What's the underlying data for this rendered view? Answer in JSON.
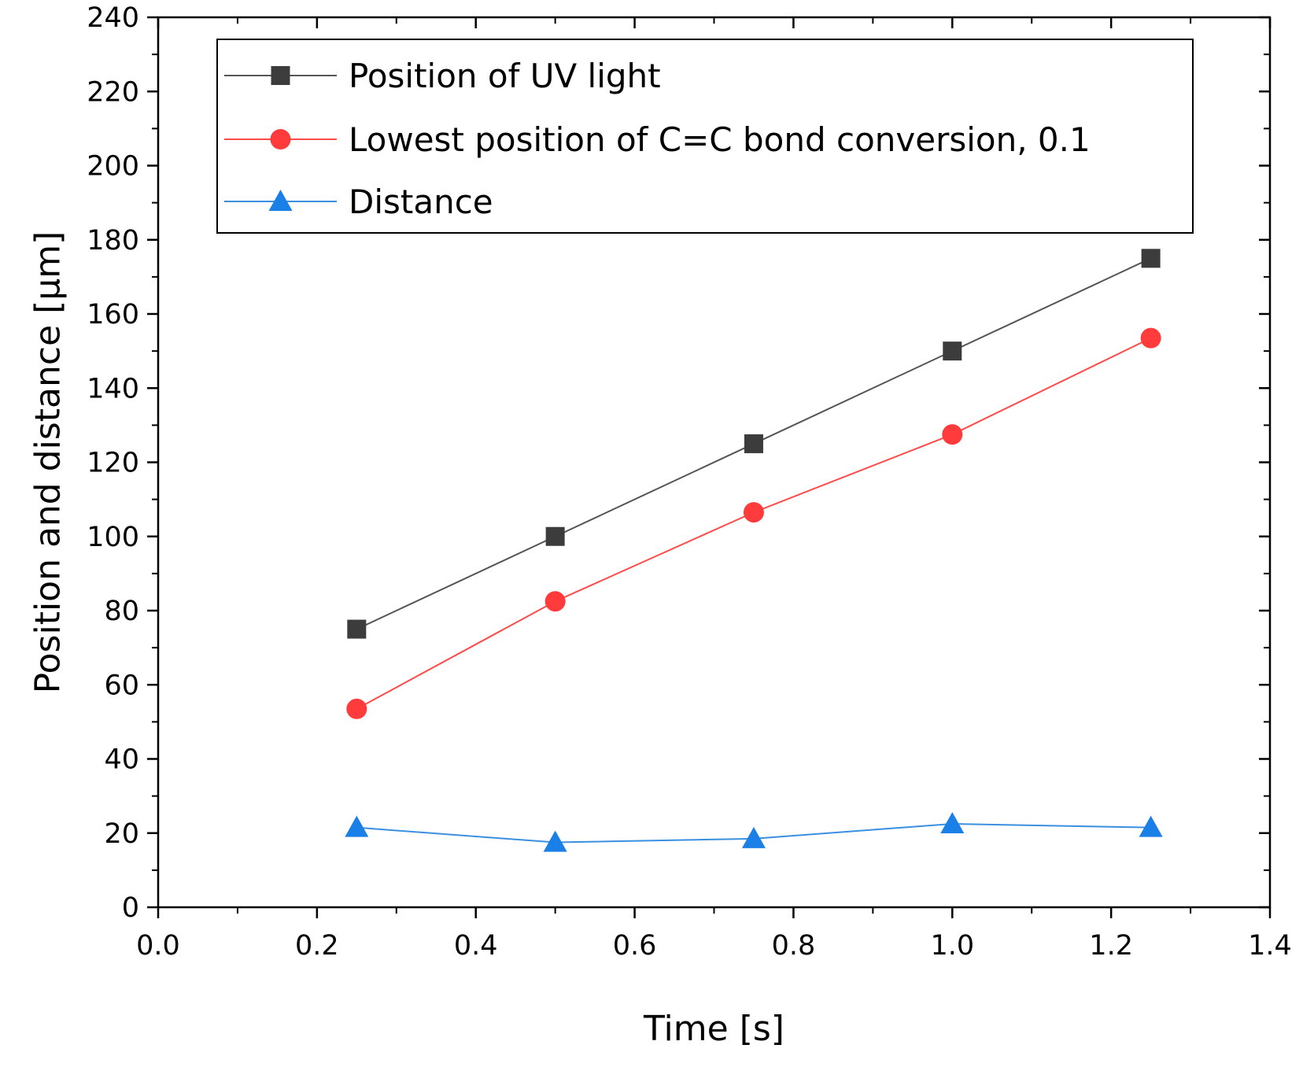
{
  "chart_data": {
    "type": "line",
    "title": "",
    "xlabel": "Time [s]",
    "ylabel": "Position and distance [µm]",
    "xlim": [
      0.0,
      1.4
    ],
    "ylim": [
      0,
      240
    ],
    "x_ticks": [
      0.0,
      0.2,
      0.4,
      0.6,
      0.8,
      1.0,
      1.2,
      1.4
    ],
    "x_tick_labels": [
      "0.0",
      "0.2",
      "0.4",
      "0.6",
      "0.8",
      "1.0",
      "1.2",
      "1.4"
    ],
    "y_ticks": [
      0,
      20,
      40,
      60,
      80,
      100,
      120,
      140,
      160,
      180,
      200,
      220,
      240
    ],
    "y_tick_labels": [
      "0",
      "20",
      "40",
      "60",
      "80",
      "100",
      "120",
      "140",
      "160",
      "180",
      "200",
      "220",
      "240"
    ],
    "grid": false,
    "legend_position": "top-left",
    "x": [
      0.25,
      0.5,
      0.75,
      1.0,
      1.25
    ],
    "series": [
      {
        "name": "Position of UV light",
        "values": [
          75,
          100,
          125,
          150,
          175
        ],
        "color": "#3c3c3c",
        "line_color": "#555555",
        "marker": "square"
      },
      {
        "name": "Lowest position of C=C bond conversion, 0.1",
        "values": [
          53.5,
          82.5,
          106.5,
          127.5,
          153.5
        ],
        "color": "#ff3b3b",
        "line_color": "#ff4a4a",
        "marker": "circle"
      },
      {
        "name": "Distance",
        "values": [
          21.5,
          17.5,
          18.5,
          22.5,
          21.5
        ],
        "color": "#1a7fe6",
        "line_color": "#3a8fe0",
        "marker": "triangle"
      }
    ]
  }
}
